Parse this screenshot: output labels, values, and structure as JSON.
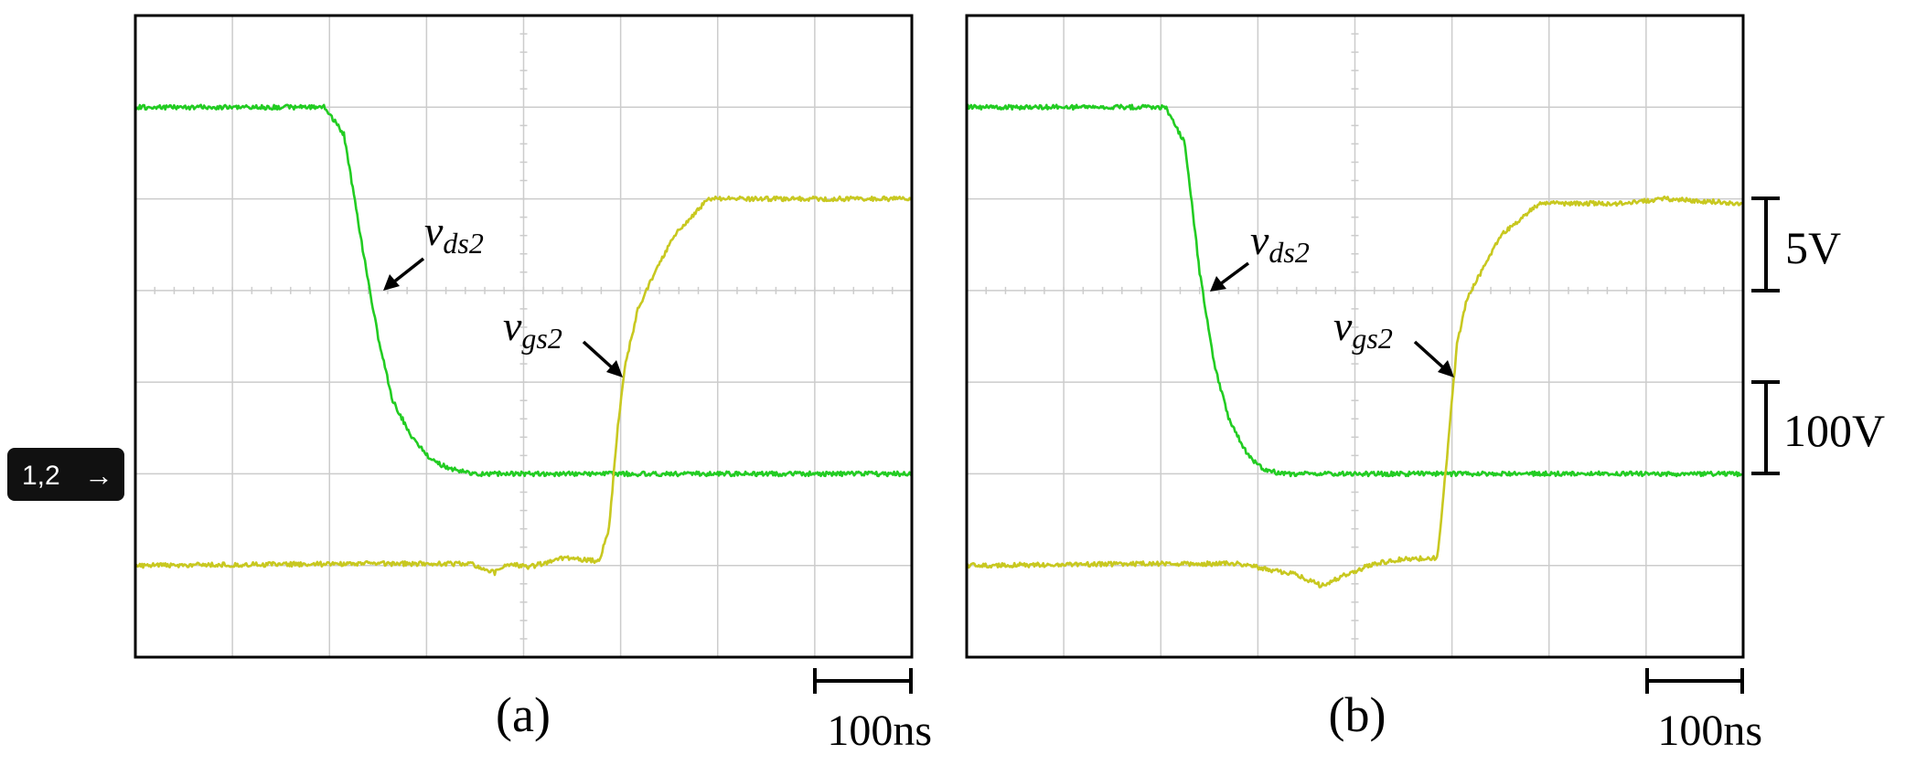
{
  "channel_marker": {
    "label": "1,2",
    "arrow": "→"
  },
  "panels": [
    {
      "caption": "(a)",
      "time_scale_label": "100ns",
      "labels": {
        "vds": {
          "main": "v",
          "sub": "ds2"
        },
        "vgs": {
          "main": "v",
          "sub": "gs2"
        }
      }
    },
    {
      "caption": "(b)",
      "time_scale_label": "100ns",
      "labels": {
        "vds": {
          "main": "v",
          "sub": "ds2"
        },
        "vgs": {
          "main": "v",
          "sub": "gs2"
        }
      }
    }
  ],
  "scale_bars": {
    "vgs_label": "5V",
    "vds_label": "100V"
  },
  "colors": {
    "vds": "#22cc22",
    "vgs": "#c8c820",
    "grid": "#cccccc",
    "frame": "#000000",
    "marker_bg": "#111111"
  },
  "chart_data": [
    {
      "type": "line",
      "title": "(a)",
      "xlabel": "",
      "ylabel": "",
      "x_unit": "div",
      "y_unit": "div",
      "xlim": [
        0,
        8
      ],
      "ylim": [
        -2.6,
        4.4
      ],
      "grid": true,
      "series": [
        {
          "name": "vds2",
          "color": "#22cc22",
          "x": [
            0,
            1.95,
            2.15,
            2.35,
            2.5,
            2.65,
            2.85,
            3.05,
            3.25,
            3.5,
            4.5,
            8
          ],
          "y": [
            4.0,
            4.0,
            3.7,
            2.4,
            1.5,
            0.8,
            0.4,
            0.15,
            0.05,
            0.0,
            0.0,
            0.0
          ]
        },
        {
          "name": "vgs2",
          "color": "#c8c820",
          "x": [
            0,
            2.5,
            3.45,
            3.7,
            3.85,
            4.05,
            4.4,
            4.78,
            4.88,
            4.97,
            5.05,
            5.18,
            5.35,
            5.55,
            5.9,
            8
          ],
          "y": [
            -1.0,
            -0.98,
            -0.98,
            -1.08,
            -0.98,
            -1.02,
            -0.92,
            -0.95,
            -0.6,
            0.5,
            1.2,
            1.8,
            2.2,
            2.6,
            3.0,
            3.0
          ]
        }
      ]
    },
    {
      "type": "line",
      "title": "(b)",
      "xlabel": "",
      "ylabel": "",
      "x_unit": "div",
      "y_unit": "div",
      "xlim": [
        0,
        8
      ],
      "ylim": [
        -2.6,
        4.4
      ],
      "grid": true,
      "series": [
        {
          "name": "vds2",
          "color": "#22cc22",
          "x": [
            0,
            2.05,
            2.25,
            2.4,
            2.55,
            2.7,
            2.9,
            3.05,
            3.25,
            4.5,
            8
          ],
          "y": [
            4.0,
            4.0,
            3.6,
            2.2,
            1.2,
            0.6,
            0.2,
            0.05,
            0.0,
            0.0,
            0.0
          ]
        },
        {
          "name": "vgs2",
          "color": "#c8c820",
          "x": [
            0,
            2.0,
            2.8,
            3.4,
            3.65,
            3.95,
            4.2,
            4.5,
            4.85,
            4.95,
            5.05,
            5.15,
            5.3,
            5.5,
            5.9,
            6.7,
            7.2,
            8
          ],
          "y": [
            -1.0,
            -0.98,
            -0.98,
            -1.1,
            -1.22,
            -1.08,
            -0.98,
            -0.93,
            -0.92,
            0.2,
            1.4,
            1.9,
            2.2,
            2.6,
            2.95,
            2.95,
            3.0,
            2.95
          ]
        }
      ]
    }
  ]
}
